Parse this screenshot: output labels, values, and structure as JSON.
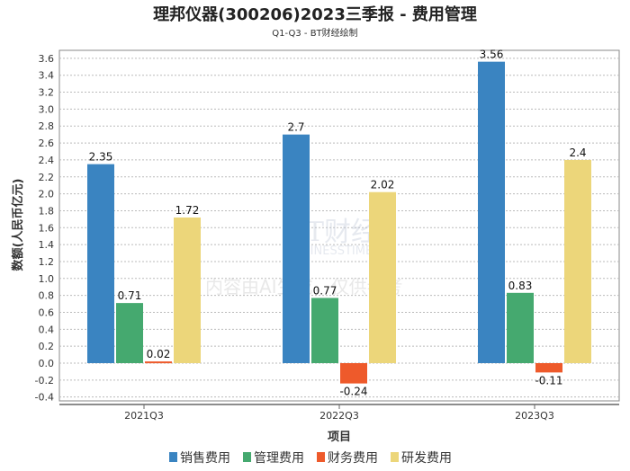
{
  "chart_data": {
    "type": "bar",
    "title": "理邦仪器(300206)2023三季报 - 费用管理",
    "subtitle": "Q1-Q3 - BT财经绘制",
    "xlabel": "项目",
    "ylabel": "数额(人民币亿元)",
    "ylim": [
      -0.4,
      3.68
    ],
    "yticks": [
      "-0.4",
      "-0.2",
      "0.0",
      "0.2",
      "0.4",
      "0.6",
      "0.8",
      "1.0",
      "1.2",
      "1.4",
      "1.6",
      "1.8",
      "2.0",
      "2.2",
      "2.4",
      "2.6",
      "2.8",
      "3.0",
      "3.2",
      "3.4",
      "3.6"
    ],
    "grid": true,
    "legend_position": "bottom",
    "categories": [
      "2021Q3",
      "2022Q3",
      "2023Q3"
    ],
    "series": [
      {
        "name": "销售费用",
        "color": "#3a84c1",
        "values": [
          2.35,
          2.7,
          3.56
        ],
        "labels": [
          "2.35",
          "2.7",
          "3.56"
        ]
      },
      {
        "name": "管理费用",
        "color": "#45a96f",
        "values": [
          0.71,
          0.77,
          0.83
        ],
        "labels": [
          "0.71",
          "0.77",
          "0.83"
        ]
      },
      {
        "name": "财务费用",
        "color": "#ee5a2b",
        "values": [
          0.02,
          -0.24,
          -0.11
        ],
        "labels": [
          "0.02",
          "-0.24",
          "-0.11"
        ]
      },
      {
        "name": "研发费用",
        "color": "#ecd67a",
        "values": [
          1.72,
          2.02,
          2.4
        ],
        "labels": [
          "1.72",
          "2.02",
          "2.4"
        ]
      }
    ]
  },
  "watermark": {
    "brand": "BT财经",
    "brand_en": "BUSINESSTIMES",
    "notice": "内容由AI生成，仅供参考"
  }
}
